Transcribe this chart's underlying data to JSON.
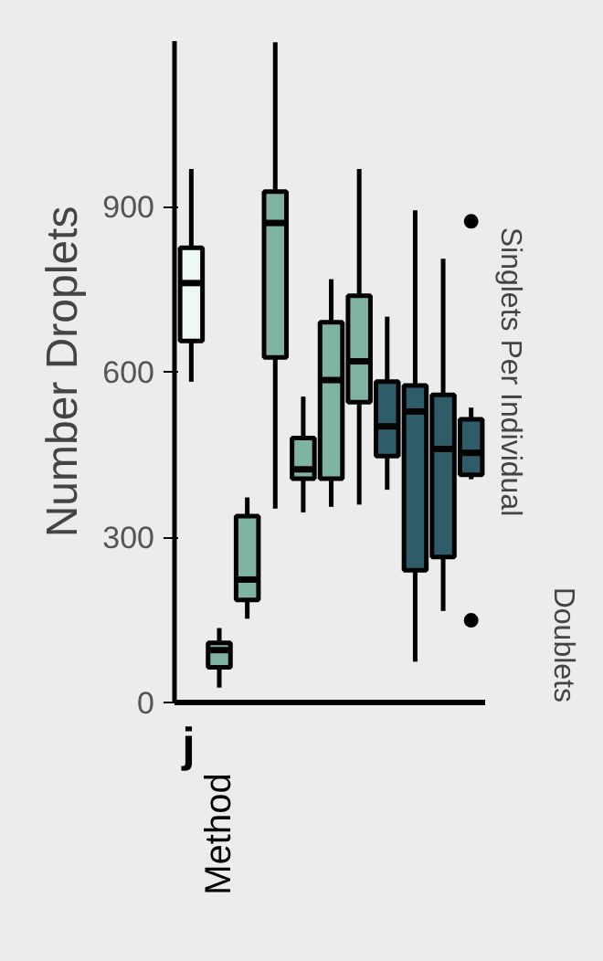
{
  "chart_data": [
    {
      "type": "box",
      "ylabel": "Number Droplets",
      "categories": [
        null,
        null,
        null,
        null,
        null,
        null,
        null,
        null,
        null,
        null,
        null
      ],
      "colors": [
        "#eef8f2",
        "#7fb3a3",
        "#7fb3a3",
        "#7fb3a3",
        "#7fb3a3",
        "#7fb3a3",
        "#7fb3a3",
        "#2e5c68",
        "#2e5c68",
        "#2e5c68",
        "#2e5c68"
      ],
      "boxes": [
        {
          "low": 582,
          "q1": 656,
          "median": 761,
          "q3": 825,
          "high": 968
        },
        {
          "low": 27,
          "q1": 64,
          "median": 95,
          "q3": 108,
          "high": 135
        },
        {
          "low": 152,
          "q1": 186,
          "median": 223,
          "q3": 338,
          "high": 372
        },
        {
          "low": 352,
          "q1": 626,
          "median": 870,
          "q3": 927,
          "high": 1198
        },
        {
          "low": 345,
          "q1": 406,
          "median": 423,
          "q3": 480,
          "high": 555
        },
        {
          "low": 355,
          "q1": 406,
          "median": 585,
          "q3": 690,
          "high": 768
        },
        {
          "low": 359,
          "q1": 545,
          "median": 619,
          "q3": 738,
          "high": 968
        },
        {
          "low": 386,
          "q1": 447,
          "median": 501,
          "q3": 582,
          "high": 700
        },
        {
          "low": 74,
          "q1": 240,
          "median": 528,
          "q3": 575,
          "high": 893
        },
        {
          "low": 166,
          "q1": 264,
          "median": 460,
          "q3": 558,
          "high": 805
        },
        {
          "low": 405,
          "q1": 413,
          "median": 453,
          "q3": 514,
          "high": 535,
          "outliers": [
            873,
            149
          ]
        }
      ],
      "ylim": [
        0,
        1200
      ],
      "yticks": [
        0,
        300,
        600,
        900
      ],
      "grid": false,
      "annotations": [
        "Singlets Per Individual",
        "Doublets",
        "j",
        "Method"
      ]
    }
  ]
}
